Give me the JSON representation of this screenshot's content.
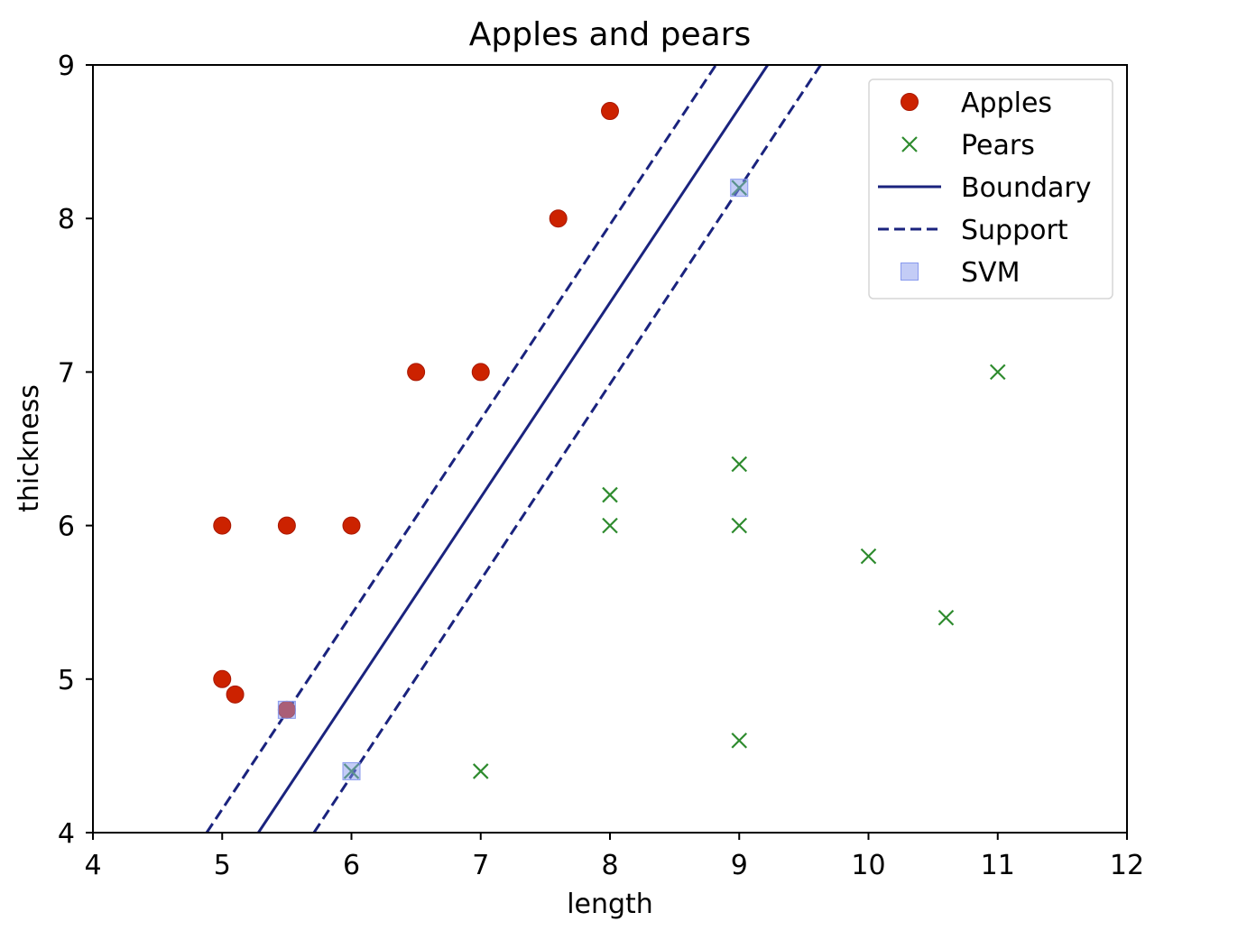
{
  "chart_data": {
    "type": "scatter",
    "title": "Apples and pears",
    "xlabel": "length",
    "ylabel": "thickness",
    "xlim": [
      4,
      12
    ],
    "ylim": [
      4,
      9
    ],
    "xticks": [
      "4",
      "5",
      "6",
      "7",
      "8",
      "9",
      "10",
      "11",
      "12"
    ],
    "yticks": [
      "4",
      "5",
      "6",
      "7",
      "8",
      "9"
    ],
    "grid": false,
    "legend_position": "top-right",
    "series": [
      {
        "name": "Apples",
        "marker": "circle",
        "color": "#cc2200",
        "points": [
          {
            "x": 5,
            "y": 6
          },
          {
            "x": 5.5,
            "y": 6
          },
          {
            "x": 6,
            "y": 6
          },
          {
            "x": 5,
            "y": 5
          },
          {
            "x": 5.1,
            "y": 4.9
          },
          {
            "x": 5.5,
            "y": 4.8
          },
          {
            "x": 6.5,
            "y": 7
          },
          {
            "x": 7,
            "y": 7
          },
          {
            "x": 7.6,
            "y": 8
          },
          {
            "x": 8,
            "y": 8.7
          }
        ]
      },
      {
        "name": "Pears",
        "marker": "x",
        "color": "#2e8b2e",
        "points": [
          {
            "x": 6,
            "y": 4.4
          },
          {
            "x": 7,
            "y": 4.4
          },
          {
            "x": 8,
            "y": 6
          },
          {
            "x": 8,
            "y": 6.2
          },
          {
            "x": 9,
            "y": 6
          },
          {
            "x": 9,
            "y": 6.4
          },
          {
            "x": 9,
            "y": 4.6
          },
          {
            "x": 10,
            "y": 5.8
          },
          {
            "x": 10.6,
            "y": 5.4
          },
          {
            "x": 11,
            "y": 7
          },
          {
            "x": 9,
            "y": 8.2
          }
        ]
      },
      {
        "name": "Boundary",
        "style": "solid-line",
        "color": "#1a237e",
        "points": [
          {
            "x": 5.28,
            "y": 4
          },
          {
            "x": 9.22,
            "y": 9
          }
        ]
      },
      {
        "name": "Support",
        "style": "dashed-line",
        "color": "#1a237e",
        "lines": [
          [
            {
              "x": 4.88,
              "y": 4
            },
            {
              "x": 8.82,
              "y": 9
            }
          ],
          [
            {
              "x": 5.71,
              "y": 4
            },
            {
              "x": 9.63,
              "y": 9
            }
          ]
        ]
      },
      {
        "name": "SVM",
        "marker": "square",
        "color": "#8899ee",
        "points": [
          {
            "x": 5.5,
            "y": 4.8
          },
          {
            "x": 6,
            "y": 4.4
          },
          {
            "x": 9,
            "y": 8.2
          }
        ]
      }
    ]
  }
}
